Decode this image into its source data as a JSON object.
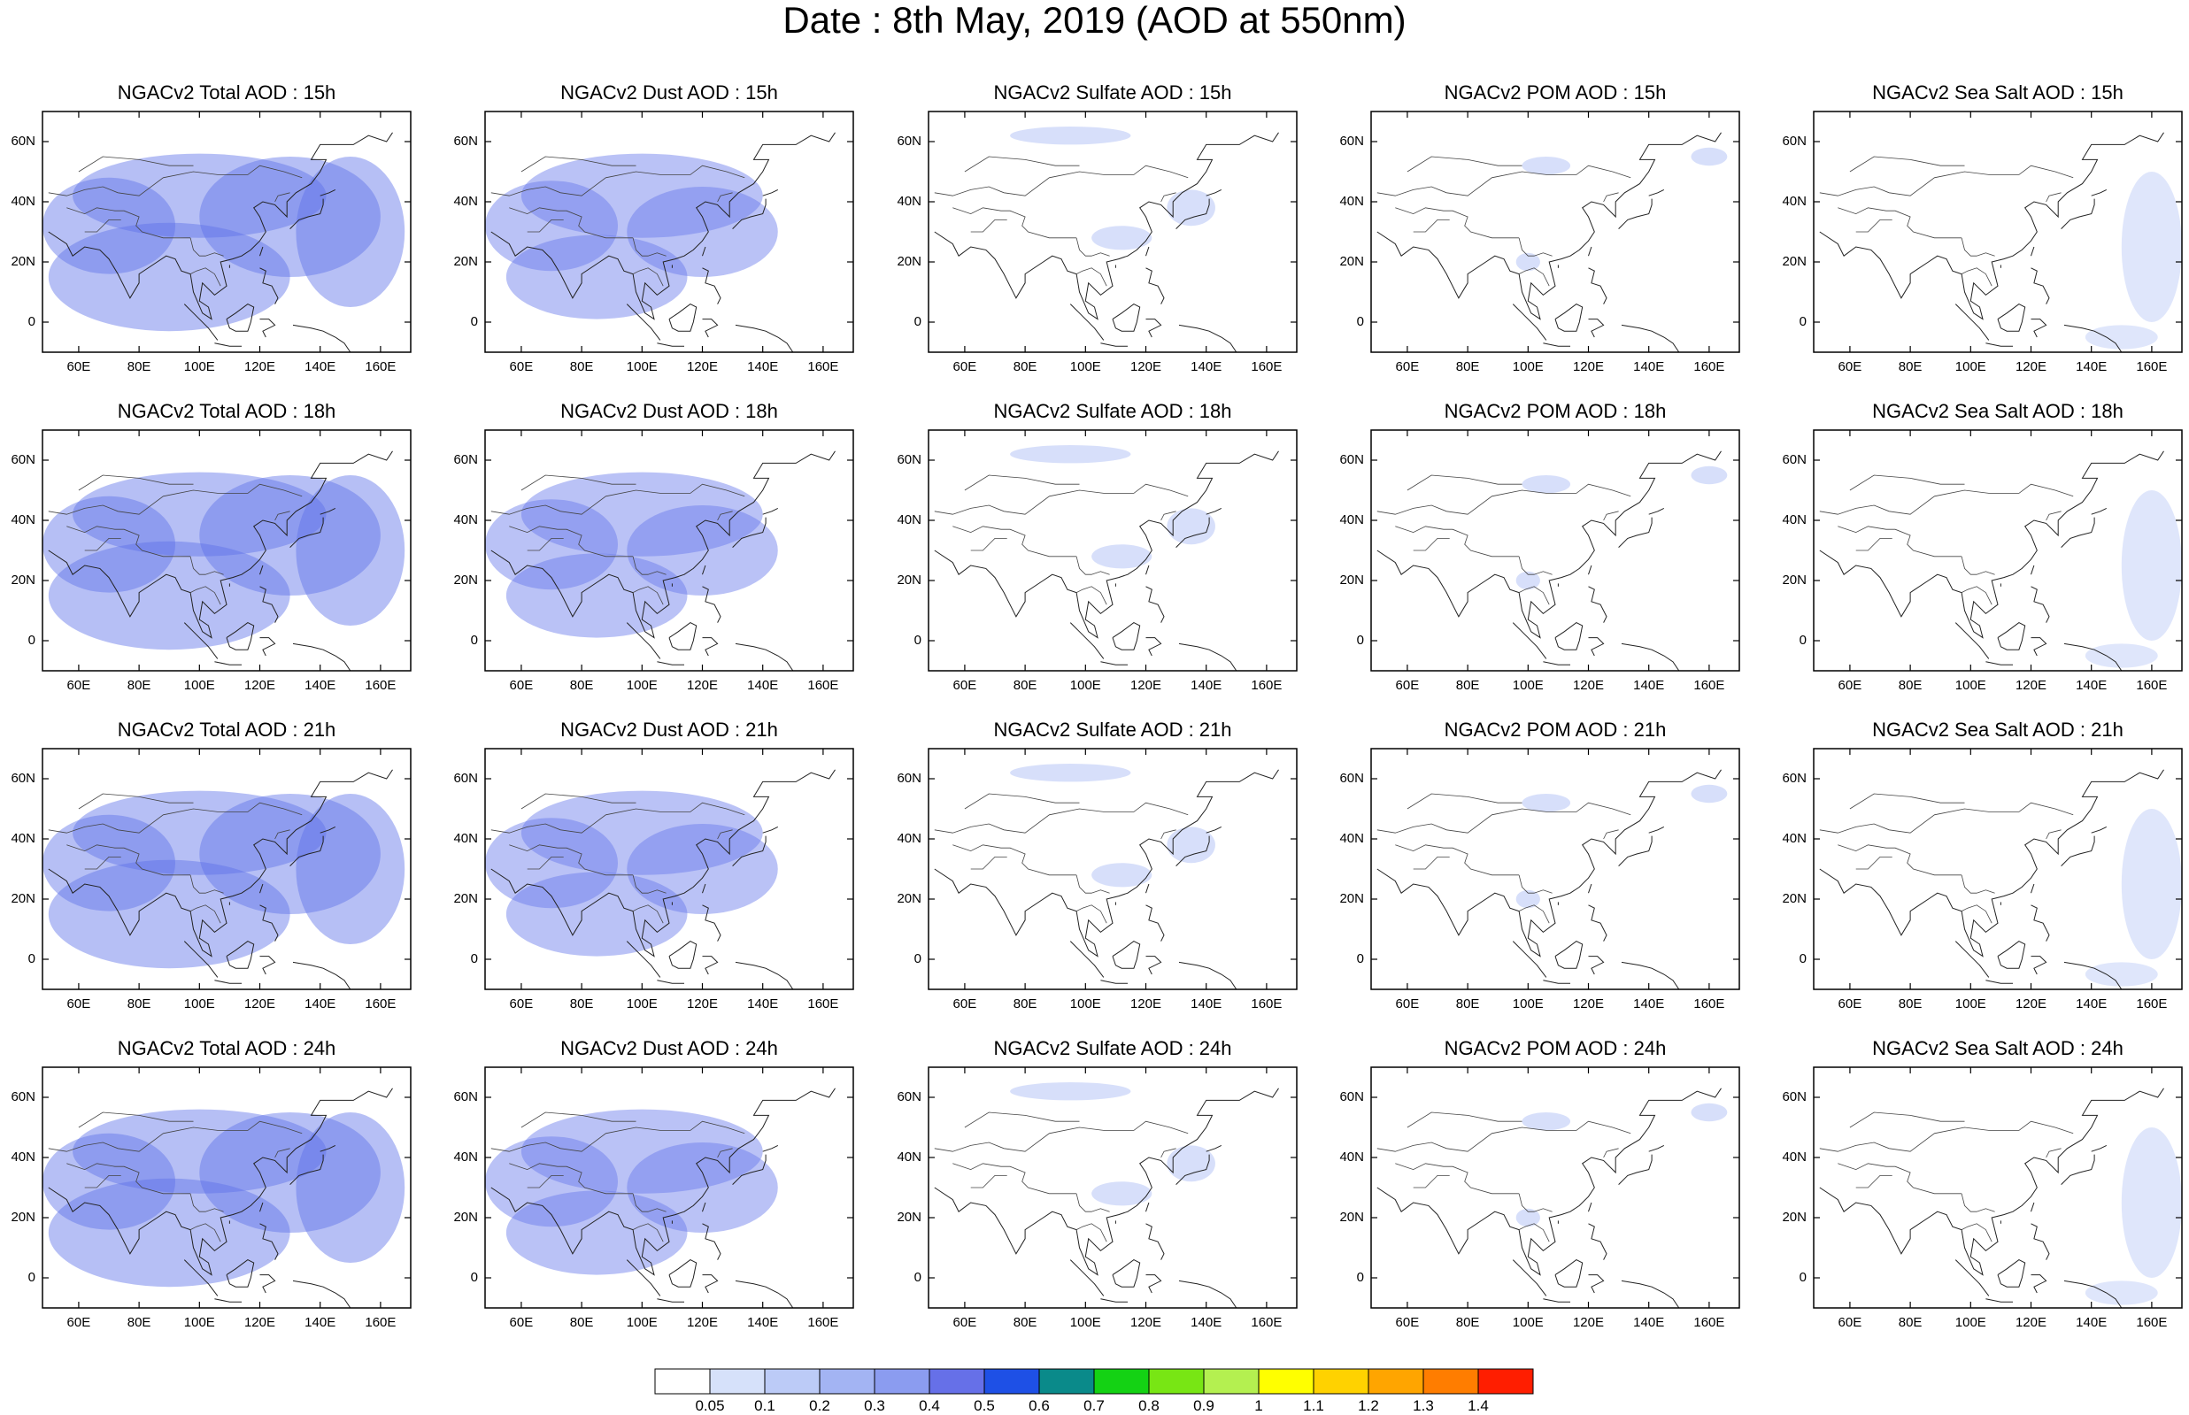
{
  "title": "Date : 8th May, 2019 (AOD at 550nm)",
  "columns": [
    {
      "key": "total",
      "color": "#5d70e8"
    },
    {
      "key": "dust",
      "color": "#6778ea"
    },
    {
      "key": "sulfate",
      "color": "#a6b7f3"
    },
    {
      "key": "pom",
      "color": "#a6b7f3"
    },
    {
      "key": "seasalt",
      "color": "#b9c8f6"
    }
  ],
  "panels": [
    [
      {
        "title": "NGACv2 Total AOD : 15h"
      },
      {
        "title": "NGACv2 Dust AOD : 15h"
      },
      {
        "title": "NGACv2 Sulfate AOD : 15h"
      },
      {
        "title": "NGACv2 POM AOD : 15h"
      },
      {
        "title": "NGACv2 Sea Salt AOD : 15h"
      }
    ],
    [
      {
        "title": "NGACv2 Total AOD : 18h"
      },
      {
        "title": "NGACv2 Dust AOD : 18h"
      },
      {
        "title": "NGACv2 Sulfate AOD : 18h"
      },
      {
        "title": "NGACv2 POM AOD : 18h"
      },
      {
        "title": "NGACv2 Sea Salt AOD : 18h"
      }
    ],
    [
      {
        "title": "NGACv2 Total AOD : 21h"
      },
      {
        "title": "NGACv2 Dust AOD : 21h"
      },
      {
        "title": "NGACv2 Sulfate AOD : 21h"
      },
      {
        "title": "NGACv2 POM AOD : 21h"
      },
      {
        "title": "NGACv2 Sea Salt AOD : 21h"
      }
    ],
    [
      {
        "title": "NGACv2 Total AOD : 24h"
      },
      {
        "title": "NGACv2 Dust AOD : 24h"
      },
      {
        "title": "NGACv2 Sulfate AOD : 24h"
      },
      {
        "title": "NGACv2 POM AOD : 24h"
      },
      {
        "title": "NGACv2 Sea Salt  AOD : 24h"
      }
    ]
  ],
  "map_extent": {
    "lon_min": 48,
    "lon_max": 170,
    "lat_min": -10,
    "lat_max": 70
  },
  "x_ticks": [
    {
      "value": 60,
      "label": "60E"
    },
    {
      "value": 80,
      "label": "80E"
    },
    {
      "value": 100,
      "label": "100E"
    },
    {
      "value": 120,
      "label": "120E"
    },
    {
      "value": 140,
      "label": "140E"
    },
    {
      "value": 160,
      "label": "160E"
    }
  ],
  "y_ticks": [
    {
      "value": 60,
      "label": "60N"
    },
    {
      "value": 40,
      "label": "40N"
    },
    {
      "value": 20,
      "label": "20N"
    },
    {
      "value": 0,
      "label": "0"
    }
  ],
  "colorbar": {
    "colors": [
      "#ffffff",
      "#d6e1fa",
      "#bccbf7",
      "#a3b4f3",
      "#8b9cf0",
      "#6670e8",
      "#1e50e6",
      "#0a8a8a",
      "#14d214",
      "#78e614",
      "#b4f050",
      "#ffff00",
      "#ffd200",
      "#ffa500",
      "#ff7d00",
      "#ff1e00"
    ],
    "labels": [
      "0.05",
      "0.1",
      "0.2",
      "0.3",
      "0.4",
      "0.5",
      "0.6",
      "0.7",
      "0.8",
      "0.9",
      "1",
      "1.1",
      "1.2",
      "1.3",
      "1.4"
    ]
  }
}
